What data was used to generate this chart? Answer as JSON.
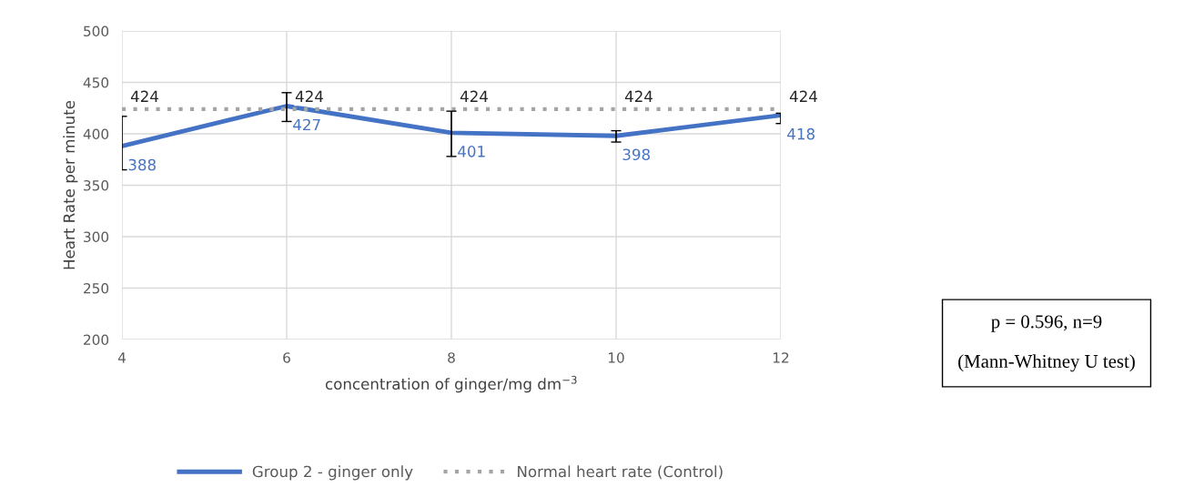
{
  "chart_data": {
    "type": "line",
    "xlabel": "concentration of ginger/mg dm$^{−3}$",
    "ylabel": "Heart Rate per minute",
    "x": [
      4,
      6,
      8,
      10,
      12
    ],
    "series": [
      {
        "name": "Group 2 - ginger only",
        "color": "#4472c4",
        "values": [
          388,
          427,
          401,
          398,
          418
        ],
        "errors": [
          [
            365,
            417
          ],
          [
            412,
            440
          ],
          [
            378,
            422
          ],
          [
            392,
            403
          ],
          [
            410,
            420
          ]
        ],
        "line_style": "solid"
      },
      {
        "name": "Normal heart rate (Control)",
        "color": "#a5a5a5",
        "values": [
          424,
          424,
          424,
          424,
          424
        ],
        "line_style": "dotted"
      }
    ],
    "xlim": [
      4,
      12
    ],
    "xticks": [
      4,
      6,
      8,
      10,
      12
    ],
    "ylim": [
      200,
      500
    ],
    "yticks": [
      200,
      250,
      300,
      350,
      400,
      450,
      500
    ],
    "grid": true,
    "legend": "bottom",
    "data_labels": true,
    "marker": "none",
    "annotations": [
      "p = 0.596, n=9\n\n(Mann-Whitney U test)"
    ]
  }
}
